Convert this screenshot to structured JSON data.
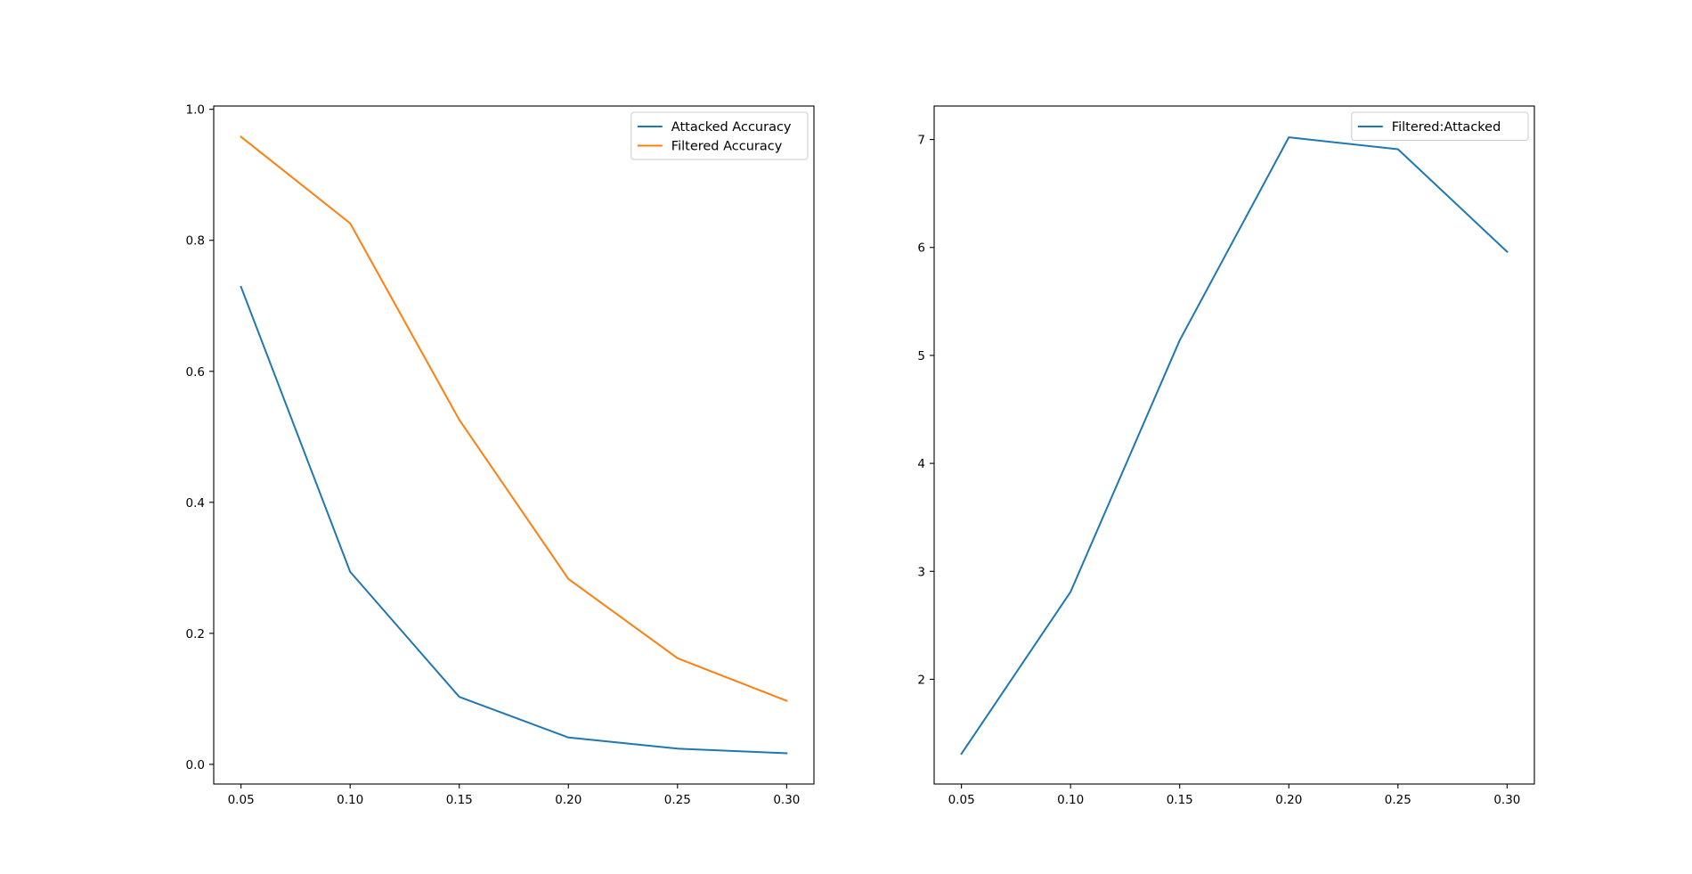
{
  "chart_data": [
    {
      "type": "line",
      "title": "",
      "xlabel": "",
      "ylabel": "",
      "x": [
        0.05,
        0.1,
        0.15,
        0.2,
        0.25,
        0.3
      ],
      "x_tick_labels": [
        "0.05",
        "0.10",
        "0.15",
        "0.20",
        "0.25",
        "0.30"
      ],
      "y_ticks": [
        0.0,
        0.2,
        0.4,
        0.6,
        0.8,
        1.0
      ],
      "y_tick_labels": [
        "0.0",
        "0.2",
        "0.4",
        "0.6",
        "0.8",
        "1.0"
      ],
      "xlim": [
        0.0375,
        0.3125
      ],
      "ylim": [
        -0.03,
        1.005
      ],
      "grid": false,
      "legend_position": "top-right",
      "series": [
        {
          "name": "Attacked Accuracy",
          "color": "#1f77b4",
          "values": [
            0.729,
            0.294,
            0.103,
            0.041,
            0.024,
            0.017
          ]
        },
        {
          "name": "Filtered Accuracy",
          "color": "#ff7f0e",
          "values": [
            0.958,
            0.826,
            0.526,
            0.283,
            0.162,
            0.097
          ]
        }
      ]
    },
    {
      "type": "line",
      "title": "",
      "xlabel": "",
      "ylabel": "",
      "x": [
        0.05,
        0.1,
        0.15,
        0.2,
        0.25,
        0.3
      ],
      "x_tick_labels": [
        "0.05",
        "0.10",
        "0.15",
        "0.20",
        "0.25",
        "0.30"
      ],
      "y_ticks": [
        2,
        3,
        4,
        5,
        6,
        7
      ],
      "y_tick_labels": [
        "2",
        "3",
        "4",
        "5",
        "6",
        "7"
      ],
      "xlim": [
        0.0375,
        0.3125
      ],
      "ylim": [
        1.03,
        7.31
      ],
      "grid": false,
      "legend_position": "top-right",
      "series": [
        {
          "name": "Filtered:Attacked",
          "color": "#1f77b4",
          "values": [
            1.31,
            2.81,
            5.14,
            7.02,
            6.91,
            5.96
          ]
        }
      ]
    }
  ]
}
